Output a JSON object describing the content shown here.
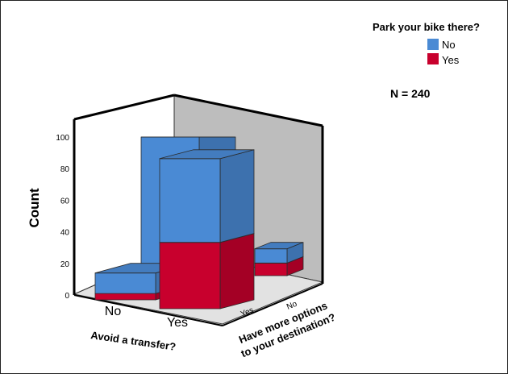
{
  "chart_data": {
    "type": "bar",
    "stacked": true,
    "three_d": true,
    "ylabel": "Count",
    "xlabel": "Avoid a transfer?",
    "zlabel": "Have more options\nto your destination?",
    "x_categories": [
      "No",
      "Yes"
    ],
    "z_categories": [
      "Yes",
      "No"
    ],
    "ylim": [
      0,
      100
    ],
    "yticks": [
      0,
      20,
      40,
      60,
      80,
      100
    ],
    "legend": {
      "title": "Park your bike there?",
      "placement": "top-right",
      "entries": [
        {
          "name": "No",
          "color": "#4a8ad4"
        },
        {
          "name": "Yes",
          "color": "#c8002d"
        }
      ]
    },
    "annotation": "N = 240",
    "grid": false,
    "series": [
      {
        "name": "No",
        "color": "#4a8ad4",
        "values": [
          {
            "x": "No",
            "z": "Yes",
            "value": 13
          },
          {
            "x": "Yes",
            "z": "Yes",
            "value": 53
          },
          {
            "x": "No",
            "z": "No",
            "value": 0
          },
          {
            "x": "Yes",
            "z": "No",
            "value": 100
          }
        ]
      },
      {
        "name": "Yes",
        "color": "#c8002d",
        "values": [
          {
            "x": "No",
            "z": "Yes",
            "value": 4
          },
          {
            "x": "Yes",
            "z": "Yes",
            "value": 42
          },
          {
            "x": "No",
            "z": "No",
            "value": 0
          },
          {
            "x": "Yes",
            "z": "No",
            "value": 0
          }
        ]
      }
    ],
    "right_series": [
      {
        "name": "No",
        "values": [
          {
            "x": "Yes",
            "z": "No",
            "value": 9
          }
        ]
      },
      {
        "name": "Yes",
        "values": [
          {
            "x": "Yes",
            "z": "No",
            "value": 8
          }
        ]
      }
    ]
  }
}
